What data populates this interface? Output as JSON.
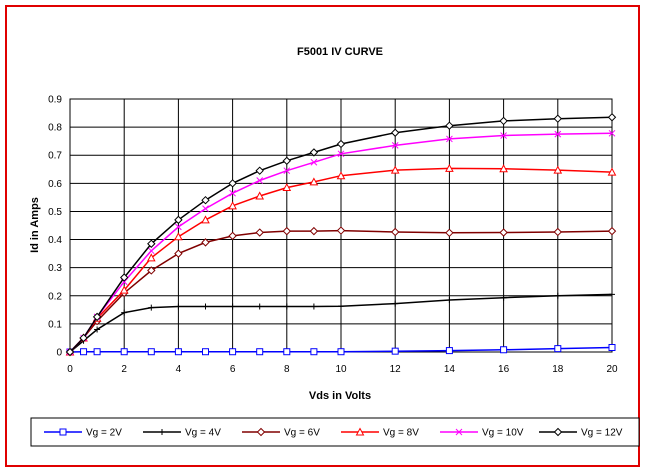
{
  "chart_data": {
    "type": "line",
    "title": "F5001 IV CURVE",
    "xlabel": "Vds in Volts",
    "ylabel": "Id in Amps",
    "xlim": [
      0,
      20
    ],
    "ylim": [
      0,
      0.9
    ],
    "x_ticks": [
      "0",
      "2",
      "4",
      "6",
      "8",
      "10",
      "12",
      "14",
      "16",
      "18",
      "20"
    ],
    "y_ticks": [
      "0",
      "0.1",
      "0.2",
      "0.3",
      "0.4",
      "0.5",
      "0.6",
      "0.7",
      "0.8",
      "0.9"
    ],
    "grid": true,
    "legend_position": "bottom",
    "x": [
      0,
      0.5,
      1,
      2,
      3,
      4,
      5,
      6,
      7,
      8,
      9,
      10,
      12,
      14,
      16,
      18,
      20
    ],
    "series": [
      {
        "name": "Vg = 2V",
        "color": "#0000ff",
        "marker": "square",
        "values": [
          0,
          0.001,
          0.001,
          0.001,
          0.001,
          0.001,
          0.001,
          0.001,
          0.001,
          0.001,
          0.001,
          0.001,
          0.003,
          0.005,
          0.008,
          0.012,
          0.016
        ]
      },
      {
        "name": "Vg = 4V",
        "color": "#000000",
        "marker": "plus",
        "values": [
          0,
          0.04,
          0.08,
          0.14,
          0.158,
          0.162,
          0.162,
          0.162,
          0.162,
          0.162,
          0.162,
          0.163,
          0.172,
          0.185,
          0.193,
          0.2,
          0.205
        ]
      },
      {
        "name": "Vg = 6V",
        "color": "#800000",
        "marker": "diamond",
        "values": [
          0,
          0.05,
          0.11,
          0.21,
          0.29,
          0.35,
          0.39,
          0.413,
          0.425,
          0.43,
          0.43,
          0.432,
          0.427,
          0.424,
          0.425,
          0.427,
          0.43
        ]
      },
      {
        "name": "Vg = 8V",
        "color": "#ff0000",
        "marker": "triangle",
        "values": [
          0,
          0.05,
          0.12,
          0.22,
          0.335,
          0.41,
          0.47,
          0.52,
          0.555,
          0.585,
          0.605,
          0.627,
          0.647,
          0.653,
          0.652,
          0.647,
          0.64
        ]
      },
      {
        "name": "Vg = 10V",
        "color": "#ff00ff",
        "marker": "x",
        "values": [
          0,
          0.05,
          0.125,
          0.25,
          0.36,
          0.445,
          0.51,
          0.565,
          0.61,
          0.645,
          0.675,
          0.705,
          0.735,
          0.758,
          0.77,
          0.775,
          0.778
        ]
      },
      {
        "name": "Vg = 12V",
        "color": "#000000",
        "marker": "diamond",
        "values": [
          0,
          0.05,
          0.125,
          0.265,
          0.385,
          0.47,
          0.54,
          0.6,
          0.645,
          0.68,
          0.71,
          0.74,
          0.78,
          0.805,
          0.822,
          0.83,
          0.835
        ]
      }
    ]
  }
}
